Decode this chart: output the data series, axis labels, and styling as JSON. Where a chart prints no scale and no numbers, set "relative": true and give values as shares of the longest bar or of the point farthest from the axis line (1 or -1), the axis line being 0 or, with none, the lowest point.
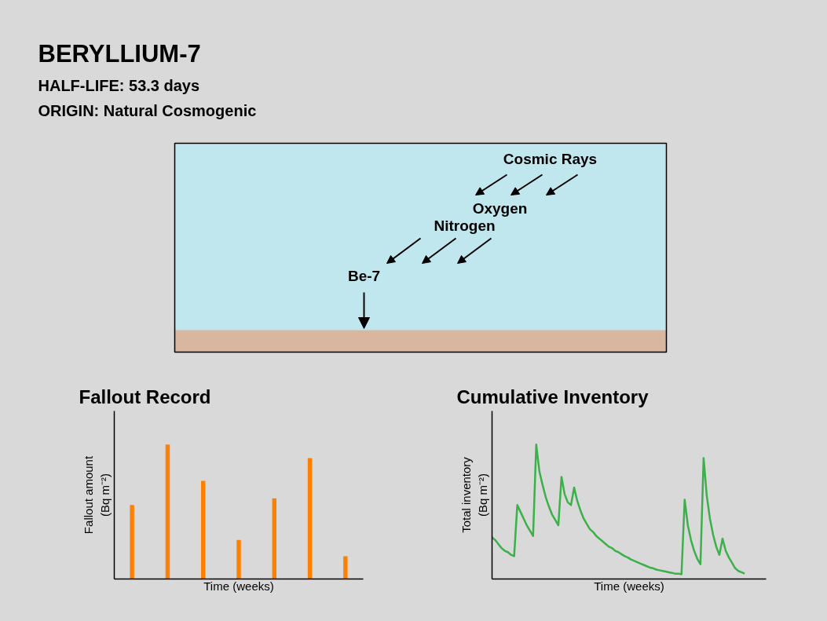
{
  "chart_data": [
    {
      "type": "other",
      "title": "BERYLLIUM-7",
      "annotations": [
        "HALF-LIFE:  53.3 days",
        "ORIGIN:  Natural Cosmogenic",
        "Cosmic Rays",
        "Oxygen",
        "Nitrogen",
        "Be-7"
      ]
    },
    {
      "type": "bar",
      "title": "Fallout Record",
      "xlabel": "Time (weeks)",
      "ylabel": "Fallout amount\n(Bq m⁻²)",
      "relative": true,
      "categories": [
        null,
        null,
        null,
        null,
        null,
        null,
        null
      ],
      "series": [
        {
          "color": "#ff8000",
          "values": [
            0.55,
            1,
            0.73,
            0.29,
            0.6,
            0.9,
            0.17
          ]
        }
      ]
    },
    {
      "type": "line",
      "title": "Cumulative Inventory",
      "xlabel": "Time (weeks)",
      "ylabel": "Total inventory\n(Bq m⁻²)",
      "relative": true,
      "categories": [
        null,
        null,
        null,
        null,
        null,
        null,
        null,
        null,
        null,
        null,
        null,
        null,
        null,
        null,
        null,
        null,
        null,
        null,
        null,
        null,
        null,
        null,
        null,
        null,
        null,
        null,
        null,
        null,
        null,
        null,
        null,
        null,
        null,
        null,
        null,
        null,
        null,
        null,
        null,
        null,
        null,
        null,
        null,
        null,
        null,
        null,
        null,
        null,
        null,
        null,
        null,
        null,
        null,
        null,
        null,
        null,
        null,
        null,
        null,
        null,
        null,
        null,
        null,
        null,
        null,
        null,
        null,
        null,
        null,
        null,
        null,
        null,
        null,
        null,
        null,
        null,
        null,
        null,
        null,
        null,
        null
      ],
      "series": [
        {
          "color": "#3cb04a",
          "values": [
            0.31,
            0.29,
            0.26,
            0.23,
            0.21,
            0.2,
            0.18,
            0.17,
            0.55,
            0.5,
            0.45,
            0.4,
            0.36,
            0.32,
            1,
            0.8,
            0.7,
            0.61,
            0.54,
            0.48,
            0.44,
            0.4,
            0.76,
            0.63,
            0.57,
            0.55,
            0.68,
            0.58,
            0.51,
            0.45,
            0.41,
            0.37,
            0.35,
            0.32,
            0.3,
            0.28,
            0.26,
            0.24,
            0.23,
            0.21,
            0.2,
            0.185,
            0.17,
            0.16,
            0.145,
            0.135,
            0.125,
            0.115,
            0.105,
            0.095,
            0.085,
            0.08,
            0.07,
            0.065,
            0.06,
            0.055,
            0.05,
            0.045,
            0.04,
            0.04,
            0.035,
            0.59,
            0.4,
            0.29,
            0.21,
            0.15,
            0.11,
            0.9,
            0.62,
            0.45,
            0.33,
            0.24,
            0.18,
            0.3,
            0.21,
            0.16,
            0.12,
            0.08,
            0.06,
            0.05,
            0.04
          ]
        }
      ]
    }
  ]
}
